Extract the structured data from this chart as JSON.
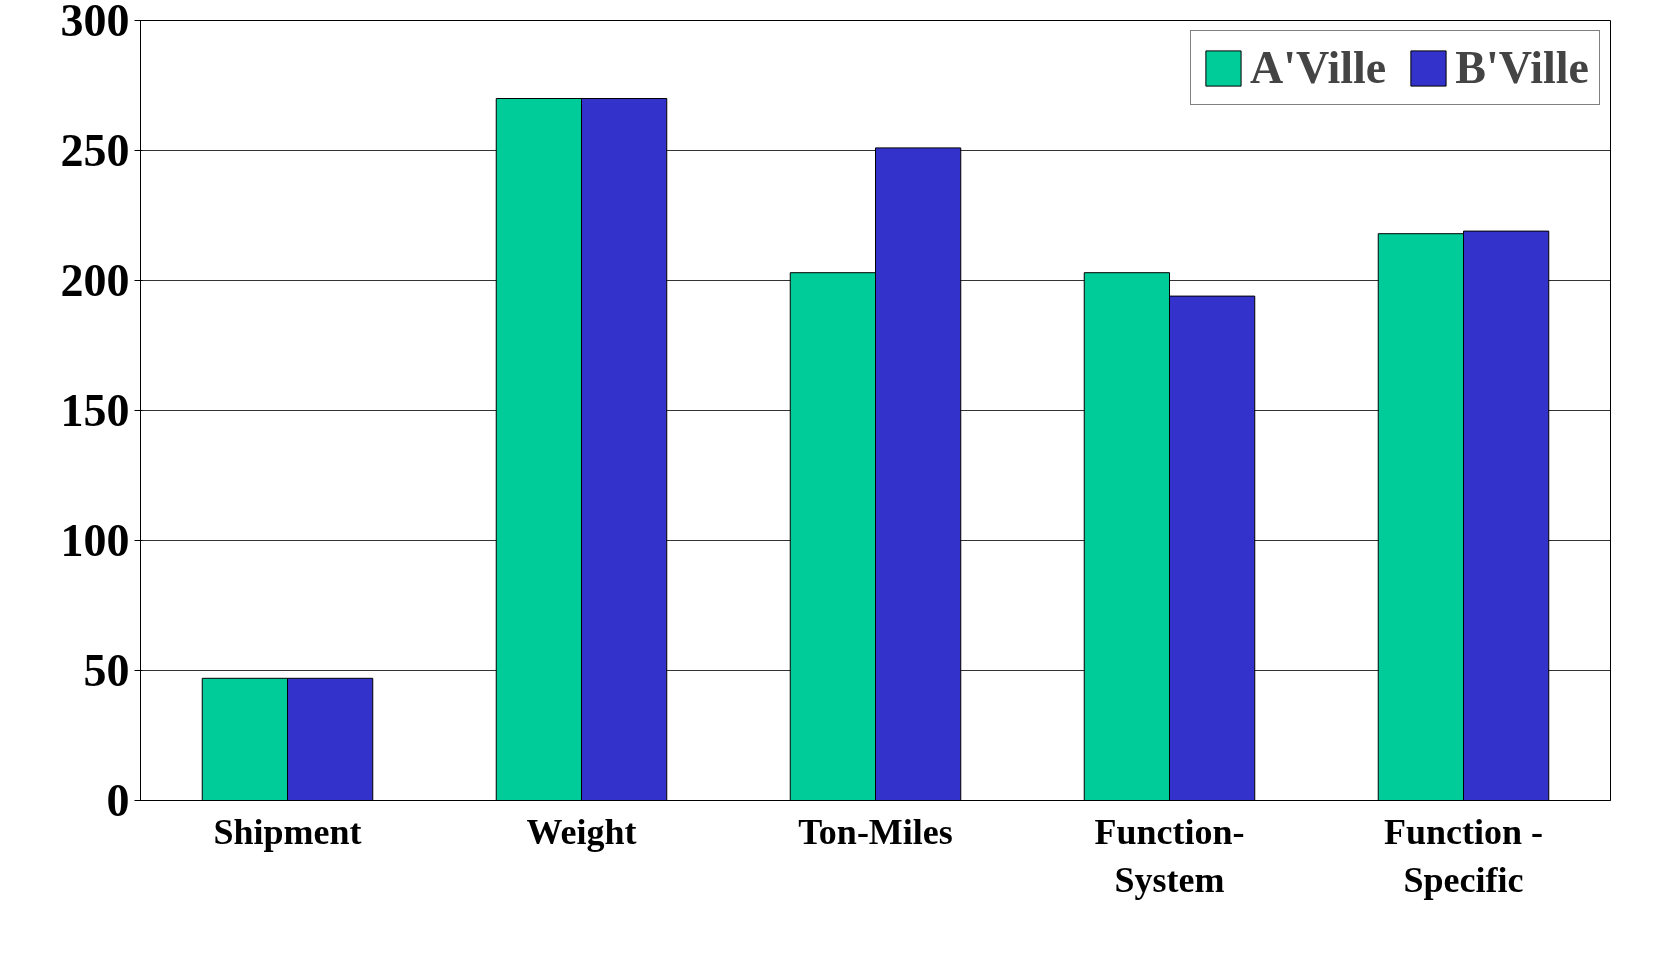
{
  "chart_data": {
    "type": "bar",
    "categories": [
      "Shipment",
      "Weight",
      "Ton-Miles",
      "Function-\nSystem",
      "Function -\nSpecific"
    ],
    "series": [
      {
        "name": "A'Ville",
        "color": "#00cc99",
        "values": [
          47,
          270,
          203,
          203,
          218
        ]
      },
      {
        "name": "B'Ville",
        "color": "#3333cc",
        "values": [
          47,
          270,
          251,
          194,
          219
        ]
      }
    ],
    "ylim": [
      0,
      300
    ],
    "yticks": [
      0,
      50,
      100,
      150,
      200,
      250,
      300
    ],
    "grid": "y",
    "legend": "top right"
  }
}
